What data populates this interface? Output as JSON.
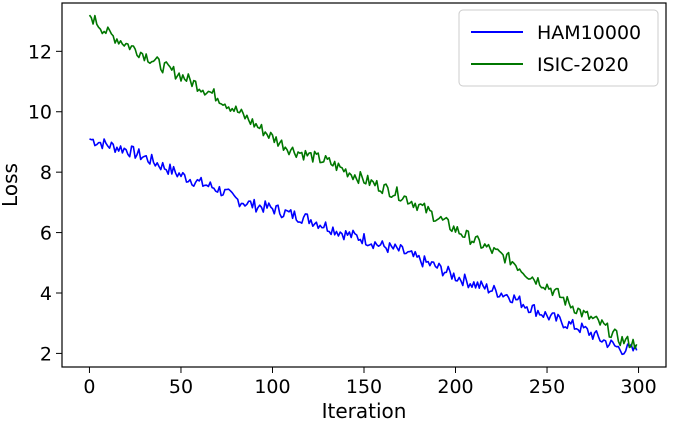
{
  "chart_data": {
    "type": "line",
    "title": "",
    "xlabel": "Iteration",
    "ylabel": "Loss",
    "xlim": [
      -15,
      315
    ],
    "ylim": [
      1.55,
      13.6
    ],
    "xticks": [
      0,
      50,
      100,
      150,
      200,
      250,
      300
    ],
    "yticks": [
      2,
      4,
      6,
      8,
      10,
      12
    ],
    "grid": false,
    "legend_position": "top-right",
    "series": [
      {
        "name": "HAM10000",
        "color": "#0000ff",
        "x": [
          0,
          10,
          20,
          30,
          40,
          50,
          60,
          70,
          80,
          90,
          100,
          110,
          120,
          130,
          140,
          150,
          160,
          170,
          180,
          190,
          200,
          210,
          220,
          230,
          240,
          250,
          260,
          270,
          280,
          290,
          299
        ],
        "y": [
          9.1,
          8.9,
          8.75,
          8.5,
          8.2,
          7.9,
          7.65,
          7.45,
          7.1,
          6.9,
          6.8,
          6.6,
          6.45,
          6.2,
          5.95,
          5.8,
          5.55,
          5.4,
          5.1,
          4.85,
          4.55,
          4.3,
          4.1,
          3.9,
          3.55,
          3.25,
          3.0,
          2.8,
          2.45,
          2.15,
          2.1
        ]
      },
      {
        "name": "ISIC-2020",
        "color": "#007700",
        "x": [
          0,
          10,
          20,
          30,
          40,
          50,
          60,
          70,
          80,
          90,
          100,
          110,
          120,
          130,
          140,
          150,
          160,
          170,
          180,
          190,
          200,
          210,
          220,
          230,
          240,
          250,
          260,
          270,
          280,
          290,
          299
        ],
        "y": [
          13.2,
          12.6,
          12.25,
          11.9,
          11.5,
          11.2,
          10.85,
          10.5,
          10.05,
          9.6,
          9.15,
          8.75,
          8.55,
          8.35,
          8.05,
          7.75,
          7.5,
          7.25,
          6.9,
          6.5,
          6.1,
          5.75,
          5.4,
          5.1,
          4.6,
          4.25,
          3.75,
          3.3,
          2.95,
          2.45,
          2.3
        ]
      }
    ]
  }
}
